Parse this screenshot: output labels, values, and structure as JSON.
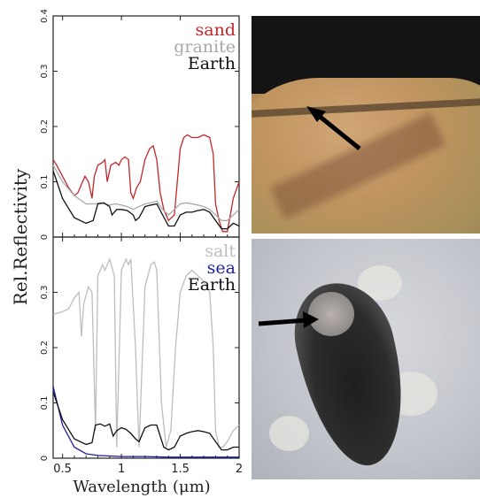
{
  "chart_data": [
    {
      "type": "line",
      "panel": "top",
      "title": "",
      "xlabel": "Wavelength (μm)",
      "ylabel": "Rel.Reflectivity",
      "xlim": [
        0.42,
        2.0
      ],
      "ylim": [
        0,
        0.4
      ],
      "yticks": [
        "0",
        "0.1",
        "0.2",
        "0.3",
        "0.4"
      ],
      "legend_position": "top-right",
      "series": [
        {
          "name": "sand",
          "color": "#c0282a",
          "x": [
            0.42,
            0.45,
            0.5,
            0.55,
            0.6,
            0.63,
            0.66,
            0.69,
            0.72,
            0.75,
            0.77,
            0.8,
            0.84,
            0.86,
            0.88,
            0.91,
            0.95,
            0.98,
            1.0,
            1.03,
            1.06,
            1.08,
            1.1,
            1.13,
            1.16,
            1.2,
            1.24,
            1.27,
            1.3,
            1.33,
            1.36,
            1.4,
            1.45,
            1.5,
            1.53,
            1.56,
            1.6,
            1.65,
            1.7,
            1.75,
            1.78,
            1.8,
            1.83,
            1.86,
            1.9,
            1.95,
            2.0
          ],
          "y": [
            0.14,
            0.13,
            0.11,
            0.09,
            0.075,
            0.08,
            0.095,
            0.11,
            0.1,
            0.07,
            0.11,
            0.13,
            0.135,
            0.14,
            0.1,
            0.13,
            0.135,
            0.13,
            0.14,
            0.145,
            0.14,
            0.08,
            0.07,
            0.09,
            0.1,
            0.14,
            0.16,
            0.165,
            0.14,
            0.08,
            0.05,
            0.03,
            0.04,
            0.16,
            0.18,
            0.185,
            0.18,
            0.18,
            0.185,
            0.18,
            0.15,
            0.06,
            0.03,
            0.01,
            0.01,
            0.07,
            0.1
          ]
        },
        {
          "name": "granite",
          "color": "#a8a8a8",
          "x": [
            0.42,
            0.5,
            0.6,
            0.7,
            0.78,
            0.82,
            0.86,
            0.9,
            0.95,
            1.0,
            1.05,
            1.1,
            1.15,
            1.2,
            1.25,
            1.3,
            1.35,
            1.4,
            1.45,
            1.5,
            1.55,
            1.6,
            1.65,
            1.7,
            1.75,
            1.8,
            1.85,
            1.9,
            1.95,
            2.0
          ],
          "y": [
            0.13,
            0.1,
            0.075,
            0.06,
            0.06,
            0.062,
            0.06,
            0.058,
            0.06,
            0.058,
            0.055,
            0.05,
            0.055,
            0.06,
            0.062,
            0.065,
            0.05,
            0.04,
            0.05,
            0.06,
            0.062,
            0.06,
            0.058,
            0.055,
            0.05,
            0.04,
            0.03,
            0.03,
            0.04,
            0.05
          ]
        },
        {
          "name": "Earth",
          "color": "#111111",
          "x": [
            0.42,
            0.5,
            0.6,
            0.7,
            0.76,
            0.8,
            0.85,
            0.9,
            0.92,
            0.96,
            1.0,
            1.05,
            1.1,
            1.12,
            1.15,
            1.2,
            1.25,
            1.3,
            1.35,
            1.4,
            1.45,
            1.5,
            1.55,
            1.6,
            1.65,
            1.7,
            1.75,
            1.8,
            1.85,
            1.9,
            1.95,
            2.0
          ],
          "y": [
            0.12,
            0.07,
            0.035,
            0.025,
            0.03,
            0.06,
            0.062,
            0.055,
            0.04,
            0.05,
            0.05,
            0.048,
            0.04,
            0.03,
            0.035,
            0.055,
            0.058,
            0.06,
            0.04,
            0.02,
            0.02,
            0.04,
            0.045,
            0.045,
            0.048,
            0.05,
            0.045,
            0.03,
            0.015,
            0.015,
            0.025,
            0.02
          ]
        }
      ]
    },
    {
      "type": "line",
      "panel": "bottom",
      "title": "",
      "xlabel": "Wavelength (μm)",
      "ylabel": "Rel.Reflectivity",
      "xlim": [
        0.42,
        2.0
      ],
      "ylim": [
        0,
        0.4
      ],
      "yticks": [
        "0",
        "0.1",
        "0.2",
        "0.3"
      ],
      "xticks": [
        "0.5",
        "1",
        "1.5",
        "2"
      ],
      "legend_position": "top-right",
      "series": [
        {
          "name": "salt",
          "color": "#bdbdbd",
          "x": [
            0.42,
            0.5,
            0.55,
            0.6,
            0.64,
            0.66,
            0.68,
            0.72,
            0.75,
            0.78,
            0.8,
            0.84,
            0.86,
            0.9,
            0.94,
            0.96,
            1.0,
            1.04,
            1.06,
            1.08,
            1.12,
            1.15,
            1.2,
            1.25,
            1.28,
            1.3,
            1.34,
            1.38,
            1.42,
            1.46,
            1.5,
            1.55,
            1.6,
            1.65,
            1.7,
            1.75,
            1.78,
            1.8,
            1.83,
            1.86,
            1.9,
            1.95,
            2.0
          ],
          "y": [
            0.26,
            0.265,
            0.27,
            0.29,
            0.3,
            0.22,
            0.28,
            0.31,
            0.3,
            0.05,
            0.33,
            0.35,
            0.34,
            0.36,
            0.33,
            0.02,
            0.34,
            0.36,
            0.35,
            0.36,
            0.2,
            0.02,
            0.31,
            0.35,
            0.355,
            0.34,
            0.1,
            0.02,
            0.05,
            0.2,
            0.3,
            0.33,
            0.34,
            0.33,
            0.32,
            0.3,
            0.2,
            0.05,
            0.02,
            0.02,
            0.03,
            0.05,
            0.06
          ]
        },
        {
          "name": "sea",
          "color": "#1f1f9e",
          "x": [
            0.42,
            0.5,
            0.6,
            0.7,
            0.8,
            0.9,
            1.0,
            1.2,
            1.4,
            1.6,
            1.8,
            2.0
          ],
          "y": [
            0.13,
            0.06,
            0.02,
            0.008,
            0.005,
            0.004,
            0.003,
            0.003,
            0.002,
            0.002,
            0.002,
            0.002
          ]
        },
        {
          "name": "Earth",
          "color": "#111111",
          "x": [
            0.42,
            0.5,
            0.6,
            0.7,
            0.75,
            0.78,
            0.82,
            0.86,
            0.9,
            0.93,
            0.96,
            1.0,
            1.04,
            1.08,
            1.12,
            1.15,
            1.2,
            1.25,
            1.3,
            1.33,
            1.36,
            1.4,
            1.45,
            1.5,
            1.55,
            1.6,
            1.65,
            1.7,
            1.75,
            1.8,
            1.85,
            1.9,
            1.95,
            2.0
          ],
          "y": [
            0.12,
            0.07,
            0.035,
            0.025,
            0.028,
            0.06,
            0.062,
            0.058,
            0.062,
            0.04,
            0.05,
            0.055,
            0.052,
            0.045,
            0.035,
            0.03,
            0.055,
            0.06,
            0.06,
            0.04,
            0.02,
            0.015,
            0.02,
            0.04,
            0.045,
            0.048,
            0.05,
            0.048,
            0.045,
            0.03,
            0.015,
            0.015,
            0.02,
            0.02
          ]
        }
      ]
    }
  ],
  "photos": {
    "top": {
      "name": "rock-photo",
      "arrow_color": "#000000"
    },
    "bottom": {
      "name": "salt-crust-photo",
      "arrow_color": "#000000"
    }
  }
}
